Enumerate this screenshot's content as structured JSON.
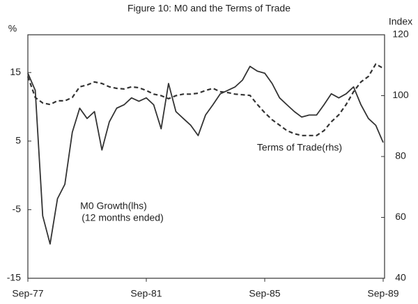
{
  "chart_data": {
    "type": "line",
    "title": "Figure 10: M0 and the Terms of Trade",
    "y_label": "%",
    "y2_label": "Index",
    "annotations": [
      "Terms of Trade(rhs)",
      "M0 Growth(lhs)",
      "(12 months ended)"
    ],
    "categories": [
      "Sep-77",
      null,
      null,
      null,
      null,
      null,
      null,
      null,
      null,
      null,
      null,
      null,
      null,
      null,
      null,
      null,
      "Sep-81",
      null,
      null,
      null,
      null,
      null,
      null,
      null,
      null,
      null,
      null,
      null,
      null,
      null,
      null,
      null,
      "Sep-85",
      null,
      null,
      null,
      null,
      null,
      null,
      null,
      null,
      null,
      null,
      null,
      null,
      null,
      null,
      null,
      "Sep-89"
    ],
    "ylim": [
      -15,
      20.5
    ],
    "yticks": [
      -15,
      -5,
      5,
      15
    ],
    "y2lim": [
      40,
      120
    ],
    "y2ticks": [
      40,
      60,
      80,
      100,
      120
    ],
    "series": [
      {
        "name": "M0 Growth(lhs)",
        "color": "#333333",
        "style": "solid",
        "values": [
          14.9,
          12.4,
          -5.9,
          -10,
          -3.4,
          -1.3,
          6.3,
          9.8,
          8.3,
          9.3,
          3.7,
          7.8,
          9.8,
          10.3,
          11.3,
          10.8,
          11.3,
          10.3,
          6.8,
          13.4,
          9.3,
          8.3,
          7.3,
          5.8,
          8.8,
          10.3,
          11.9,
          12.4,
          12.9,
          13.9,
          15.9,
          15.2,
          14.9,
          13.4,
          11.3,
          10.3,
          9.3,
          8.5,
          8.8,
          8.8,
          10.3,
          11.9,
          11.3,
          11.9,
          12.9,
          10.3,
          8.3,
          7.3,
          4.8
        ]
      },
      {
        "name": "Terms of Trade(rhs)",
        "color": "#333333",
        "style": "dashed",
        "axis": "y2",
        "values": [
          106.3,
          99.4,
          97.6,
          97.1,
          98.3,
          98.3,
          99.4,
          102.9,
          103.5,
          104.5,
          104,
          102.9,
          102.4,
          102.2,
          102.9,
          102.6,
          101.7,
          100.5,
          100,
          99,
          100,
          100.5,
          100.5,
          100.8,
          101.7,
          102.4,
          101.3,
          101,
          100.5,
          100.3,
          100.1,
          97.1,
          94.4,
          92.1,
          90.3,
          88.5,
          87.5,
          86.9,
          86.9,
          86.9,
          88.5,
          91.4,
          93.7,
          97.1,
          101.3,
          104.5,
          106.3,
          110.4,
          109
        ]
      }
    ]
  }
}
